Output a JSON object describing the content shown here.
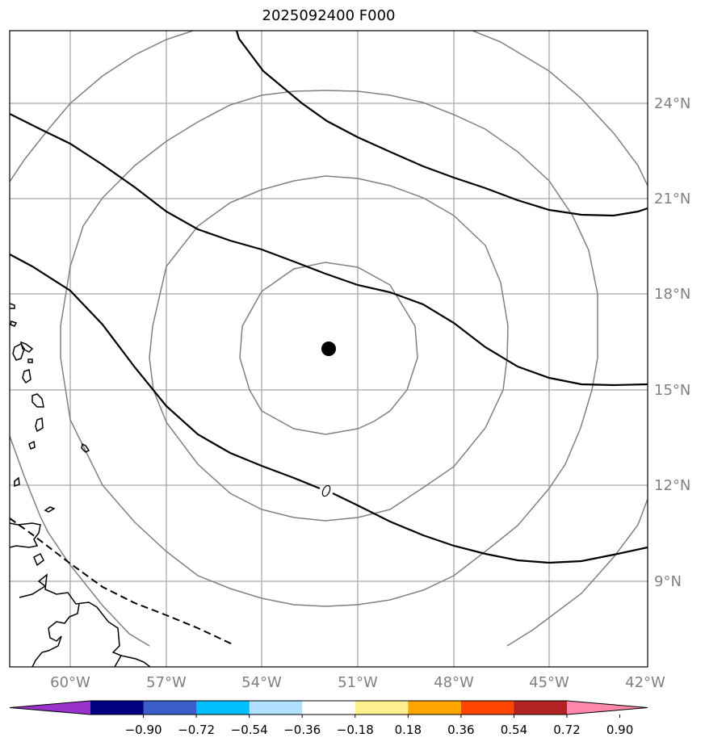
{
  "title": "2025092400 F000",
  "lon_labels": [
    "60°W",
    "57°W",
    "54°W",
    "51°W",
    "48°W",
    "45°W",
    "42°W"
  ],
  "lat_labels": [
    "24°N",
    "21°N",
    "18°N",
    "15°N",
    "12°N",
    "9°N"
  ],
  "colorbar": {
    "ticks": [
      "−0.90",
      "−0.72",
      "−0.54",
      "−0.36",
      "−0.18",
      "0.18",
      "0.36",
      "0.54",
      "0.72",
      "0.90"
    ],
    "colors": [
      "#9933cc",
      "#000080",
      "#3a5fcd",
      "#00bfff",
      "#b0e2ff",
      "#ffffff",
      "#fff08f",
      "#ffa500",
      "#ff4500",
      "#b22222",
      "#ff88aa"
    ]
  },
  "contour_labels": [
    "0"
  ],
  "colors": {
    "grid": "#a0a0a0",
    "range_rings": "#808080",
    "contour": "#000000",
    "storm_center": "#000000"
  }
}
